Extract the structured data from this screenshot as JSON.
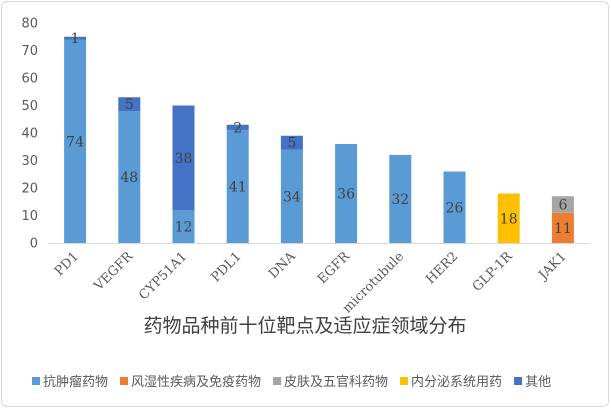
{
  "chart_data": {
    "type": "bar",
    "stacked": true,
    "title": "药物品种前十位靶点及适应症领域分布",
    "categories": [
      "PD1",
      "VEGFR",
      "CYP51A1",
      "PDL1",
      "DNA",
      "EGFR",
      "microtubule",
      "HER2",
      "GLP-1R",
      "JAK1"
    ],
    "ylim": [
      0,
      80
    ],
    "yticks": [
      0,
      10,
      20,
      30,
      40,
      50,
      60,
      70,
      80
    ],
    "grid": false,
    "legend_position": "bottom",
    "series": [
      {
        "name": "抗肿瘤药物",
        "color": "#5b9bd5",
        "values": [
          74,
          48,
          12,
          41,
          34,
          36,
          32,
          26,
          0,
          0
        ]
      },
      {
        "name": "风湿性疾病及免疫药物",
        "color": "#ed7d31",
        "values": [
          0,
          0,
          0,
          0,
          0,
          0,
          0,
          0,
          0,
          11
        ]
      },
      {
        "name": "皮肤及五官科药物",
        "color": "#a5a5a5",
        "values": [
          0,
          0,
          0,
          0,
          0,
          0,
          0,
          0,
          0,
          6
        ]
      },
      {
        "name": "内分泌系统用药",
        "color": "#ffc000",
        "values": [
          0,
          0,
          0,
          0,
          0,
          0,
          0,
          0,
          18,
          0
        ]
      },
      {
        "name": "其他",
        "color": "#4472c4",
        "values": [
          1,
          5,
          38,
          2,
          5,
          0,
          0,
          0,
          0,
          0
        ]
      }
    ]
  }
}
